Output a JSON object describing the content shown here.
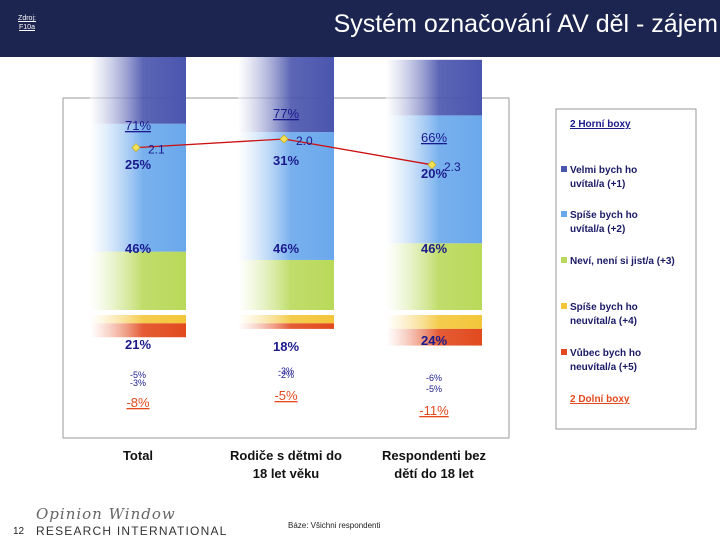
{
  "header": {
    "source": "Zdroj: F10a",
    "title": "Systém označování AV děl - zájem"
  },
  "footer": {
    "page_number": "12",
    "logo_script": "Opinion Window",
    "logo_main": "RESEARCH INTERNATIONAL",
    "base": "Báze: Všichni respondenti"
  },
  "colors": {
    "header_bg": "#1c2550",
    "velmi": "#4a55ad",
    "spise": "#6aa8ec",
    "nevi": "#b9d95a",
    "spise_ne": "#f3c63a",
    "vubec": "#e24a1e",
    "mean_line": "#cc1111",
    "mean_marker": "#f3e15a",
    "label_blue": "#1a1a8c"
  },
  "chart_data": {
    "type": "bar",
    "subtype": "diverging-stacked",
    "categories": [
      "Total",
      "Rodiče s dětmi do 18 let věku",
      "Respondenti bez dětí do 18 let"
    ],
    "category_lines": [
      [
        "Total"
      ],
      [
        "Rodiče s dětmi do",
        "18 let věku"
      ],
      [
        "Respondenti bez",
        "dětí do 18 let"
      ]
    ],
    "series": [
      {
        "name": "Velmi bych ho uvítal/a (+1)",
        "legend_lines": [
          "Velmi  bych ho",
          "uvítal/a (+1)"
        ],
        "color_key": "velmi",
        "values": [
          25,
          31,
          20
        ],
        "labels": [
          "25%",
          "31%",
          "20%"
        ]
      },
      {
        "name": "Spíše bych ho uvítal/a (+2)",
        "legend_lines": [
          "Spíše  bych ho",
          "uvítal/a (+2)"
        ],
        "color_key": "spise",
        "values": [
          46,
          46,
          46
        ],
        "labels": [
          "46%",
          "46%",
          "46%"
        ]
      },
      {
        "name": "Neví, není si jist/a (+3)",
        "legend_lines": [
          "Neví, není si jist/a (+3)"
        ],
        "color_key": "nevi",
        "values": [
          21,
          18,
          24
        ],
        "labels": [
          "21%",
          "18%",
          "24%"
        ]
      },
      {
        "name": "Spíše bych ho neuvítal/a (+4)",
        "legend_lines": [
          "Spíše bych ho",
          "neuvítal/a (+4)"
        ],
        "color_key": "spise_ne",
        "values": [
          -3,
          -3,
          -5
        ],
        "labels": [
          "-3%",
          "-3%",
          "-5%"
        ]
      },
      {
        "name": "Vůbec bych ho neuvítal/a (+5)",
        "legend_lines": [
          "Vůbec bych ho",
          "neuvítal/a (+5)"
        ],
        "color_key": "vubec",
        "values": [
          -5,
          -2,
          -6
        ],
        "labels": [
          "-5%",
          "-2%",
          "-6%"
        ]
      }
    ],
    "top2_box": {
      "label": "2 Horní boxy",
      "values": [
        "71%",
        "77%",
        "66%"
      ]
    },
    "bottom2_box": {
      "label": "2 Dolní boxy",
      "values": [
        "-8%",
        "-5%",
        "-11%"
      ]
    },
    "mean": {
      "values": [
        2.1,
        2.0,
        2.3
      ],
      "labels": [
        "2.1",
        "2.0",
        "2.3"
      ],
      "range": [
        1,
        5
      ]
    }
  }
}
